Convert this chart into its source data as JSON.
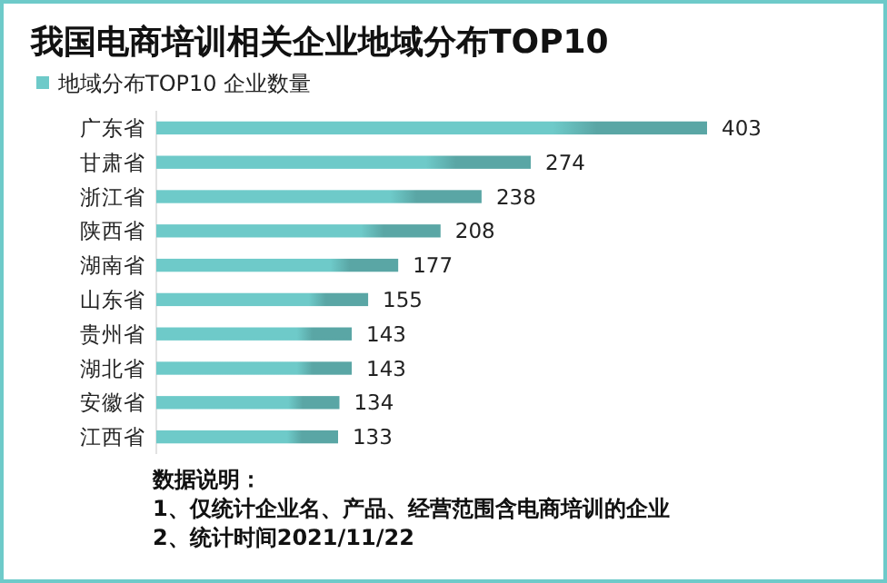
{
  "chart_data": {
    "type": "bar",
    "orientation": "horizontal",
    "title": "我国电商培训相关企业地域分布TOP10",
    "categories": [
      "广东省",
      "甘肃省",
      "浙江省",
      "陕西省",
      "湖南省",
      "山东省",
      "贵州省",
      "湖北省",
      "安徽省",
      "江西省"
    ],
    "series": [
      {
        "name": "地域分布TOP10 企业数量",
        "color": "#6ecac9",
        "values": [
          403,
          274,
          238,
          208,
          177,
          155,
          143,
          143,
          134,
          133
        ]
      }
    ],
    "data_labels": true,
    "legend": "top left",
    "annotations": [
      "数据说明：",
      "1、仅统计企业名、产品、经营范围含电商培训的企业",
      "2、统计时间2021/11/22"
    ]
  }
}
